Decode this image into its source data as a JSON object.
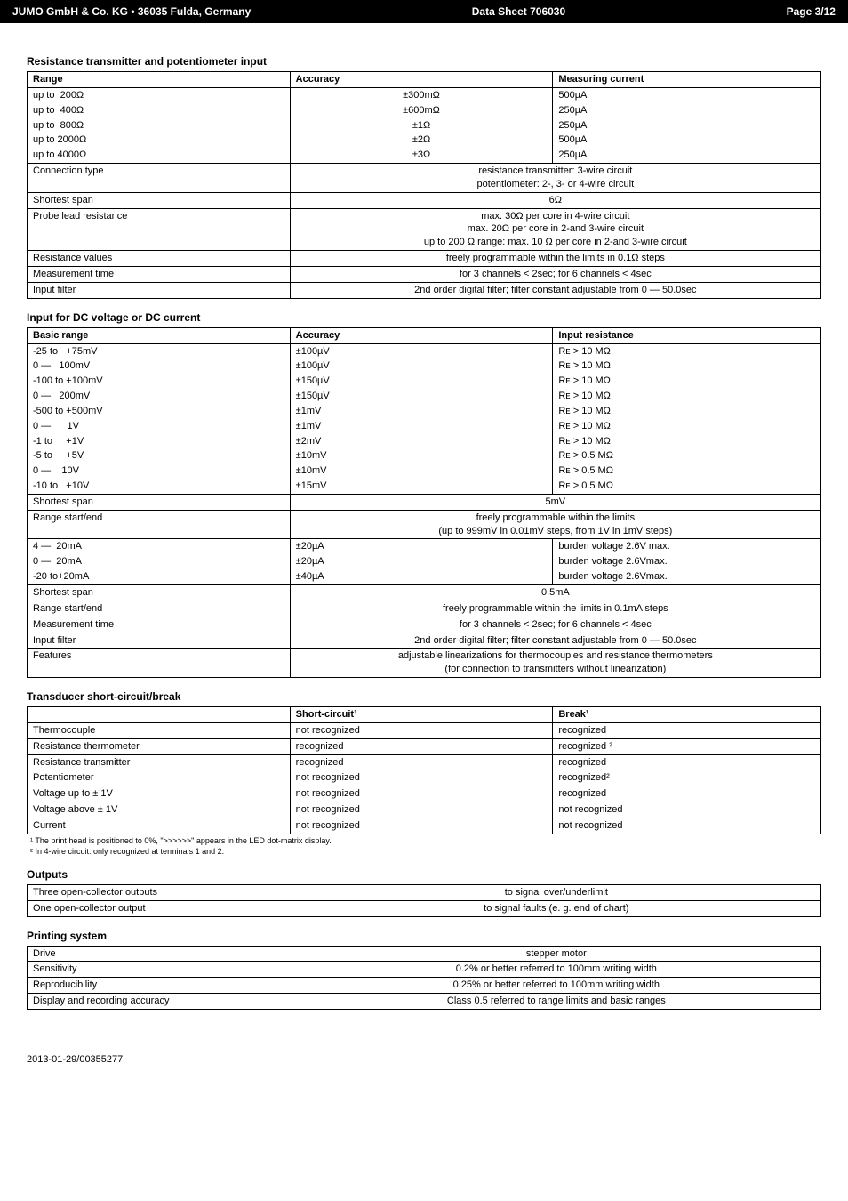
{
  "header": {
    "left": "JUMO GmbH & Co. KG • 36035 Fulda, Germany",
    "center": "Data Sheet 706030",
    "right": "Page 3/12"
  },
  "footer": "2013-01-29/00355277",
  "tables": {
    "resistance_transmitter": {
      "title": "Resistance transmitter and potentiometer input",
      "columns": [
        "Range",
        "Accuracy",
        "Measuring current"
      ],
      "top_rows": [
        [
          "up to  200Ω",
          "±300mΩ",
          "500µA"
        ],
        [
          "up to  400Ω",
          "±600mΩ",
          "250µA"
        ],
        [
          "up to  800Ω",
          "±1Ω",
          "250µA"
        ],
        [
          "up to 2000Ω",
          "±2Ω",
          "500µA"
        ],
        [
          "up to 4000Ω",
          "±3Ω",
          "250µA"
        ]
      ],
      "rows": [
        [
          "Connection type",
          "resistance transmitter: 3-wire circuit\npotentiometer: 2-, 3- or 4-wire circuit"
        ],
        [
          "Shortest span",
          "6Ω"
        ],
        [
          "Probe lead resistance",
          "max. 30Ω per core in 4-wire circuit\nmax. 20Ω per core in 2-and 3-wire circuit\nup to 200 Ω range: max. 10 Ω per core in 2-and 3-wire circuit"
        ],
        [
          "Resistance values",
          "freely programmable within the limits in 0.1Ω steps"
        ],
        [
          "Measurement time",
          "for 3 channels < 2sec; for 6 channels < 4sec"
        ],
        [
          "Input filter",
          "2nd order digital filter; filter constant adjustable from 0 — 50.0sec"
        ]
      ]
    },
    "dc_input": {
      "title": "Input for DC voltage or DC current",
      "columns": [
        "Basic range",
        "Accuracy",
        "Input resistance"
      ],
      "top_rows": [
        [
          "-25 to   +75mV",
          "±100µV",
          "Rᴇ > 10 MΩ"
        ],
        [
          "0 —   100mV",
          "±100µV",
          "Rᴇ > 10 MΩ"
        ],
        [
          "-100 to +100mV",
          "±150µV",
          "Rᴇ > 10 MΩ"
        ],
        [
          "0 —   200mV",
          "±150µV",
          "Rᴇ > 10 MΩ"
        ],
        [
          "-500 to +500mV",
          "±1mV",
          "Rᴇ > 10 MΩ"
        ],
        [
          "0 —      1V",
          "±1mV",
          "Rᴇ > 10 MΩ"
        ],
        [
          "-1 to     +1V",
          "±2mV",
          "Rᴇ > 10 MΩ"
        ],
        [
          "-5 to     +5V",
          "±10mV",
          "Rᴇ > 0.5 MΩ"
        ],
        [
          "0 —    10V",
          "±10mV",
          "Rᴇ > 0.5 MΩ"
        ],
        [
          "-10 to   +10V",
          "±15mV",
          "Rᴇ > 0.5 MΩ"
        ]
      ],
      "shortest_span_1": [
        "Shortest span",
        "5mV"
      ],
      "range_start_end_1": [
        "Range start/end",
        "freely programmable within the limits\n(up to 999mV in 0.01mV steps, from 1V in 1mV steps)"
      ],
      "current_rows": [
        [
          "4 —  20mA",
          "±20µA",
          "burden voltage 2.6V max."
        ],
        [
          "0 —  20mA",
          "±20µA",
          "burden voltage 2.6Vmax."
        ],
        [
          "-20 to+20mA",
          "±40µA",
          "burden voltage 2.6Vmax."
        ]
      ],
      "rest": [
        [
          "Shortest span",
          "0.5mA"
        ],
        [
          "Range start/end",
          "freely programmable within the limits in 0.1mA steps"
        ],
        [
          "Measurement time",
          "for 3 channels < 2sec; for 6 channels < 4sec"
        ],
        [
          "Input filter",
          "2nd order digital filter; filter constant adjustable from 0 — 50.0sec"
        ],
        [
          "Features",
          "adjustable linearizations for thermocouples  and resistance thermometers\n(for connection to transmitters without linearization)"
        ]
      ]
    },
    "transducer": {
      "title": "Transducer short-circuit/break",
      "columns": [
        "",
        "Short-circuit¹",
        "Break¹"
      ],
      "rows": [
        [
          "Thermocouple",
          "not recognized",
          "recognized"
        ],
        [
          "Resistance thermometer",
          "recognized",
          "recognized ²"
        ],
        [
          "Resistance transmitter",
          "recognized",
          "recognized"
        ],
        [
          "Potentiometer",
          "not recognized",
          "recognized²"
        ],
        [
          "Voltage up to ± 1V",
          "not recognized",
          "recognized"
        ],
        [
          "Voltage above ± 1V",
          "not recognized",
          "not recognized"
        ],
        [
          "Current",
          "not recognized",
          "not recognized"
        ]
      ],
      "footnotes": [
        "¹  The print head is positioned to 0%, \">>>>>>\" appears in the LED dot-matrix display.",
        "²  In 4-wire circuit: only recognized at terminals 1 and 2."
      ]
    },
    "outputs": {
      "title": "Outputs",
      "rows": [
        [
          "Three open-collector outputs",
          "to signal over/underlimit"
        ],
        [
          "One open-collector output",
          "to signal faults (e. g. end of chart)"
        ]
      ]
    },
    "printing": {
      "title": "Printing system",
      "rows": [
        [
          "Drive",
          "stepper motor"
        ],
        [
          "Sensitivity",
          "0.2% or better referred to 100mm writing width"
        ],
        [
          "Reproducibility",
          "0.25% or better referred to 100mm writing width"
        ],
        [
          "Display and recording accuracy",
          "Class 0.5 referred to range limits and basic ranges"
        ]
      ]
    }
  }
}
